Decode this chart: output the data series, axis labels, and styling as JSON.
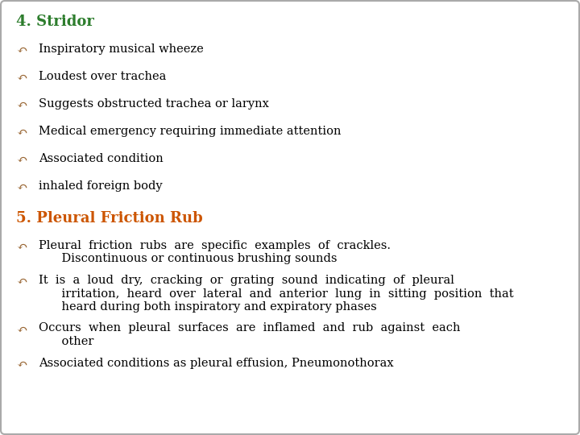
{
  "bg_color": "#ffffff",
  "border_color": "#aaaaaa",
  "title1": "4. Stridor",
  "title1_color": "#2d7d2d",
  "title2": "5. Pleural Friction Rub",
  "title2_color": "#cc5500",
  "bullet_color": "#996633",
  "text_color": "#000000",
  "bullet1_items": [
    "Inspiratory musical wheeze",
    "Loudest over trachea",
    "Suggests obstructed trachea or larynx",
    "Medical emergency requiring immediate attention",
    "Associated condition",
    "inhaled foreign body"
  ],
  "font_size_title": 13,
  "font_size_body": 10.5,
  "figwidth": 7.2,
  "figheight": 5.4,
  "dpi": 100
}
